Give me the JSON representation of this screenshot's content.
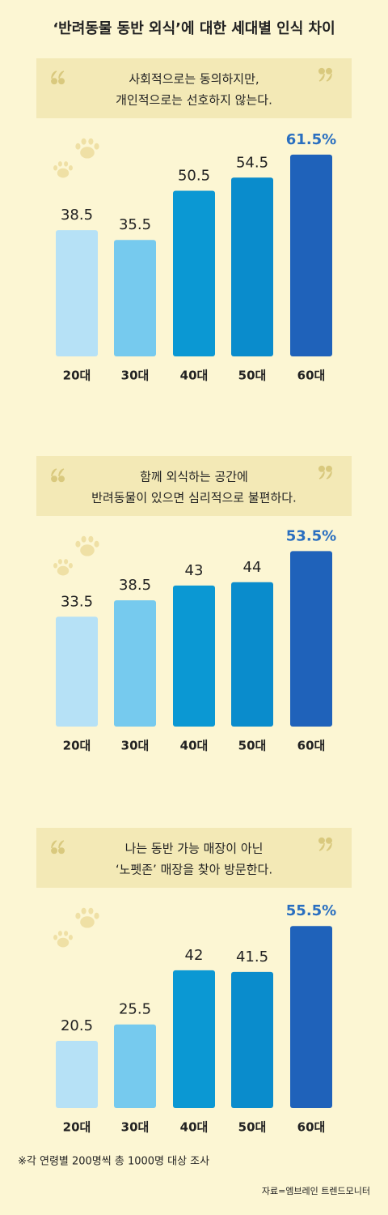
{
  "title": "‘반려동물 동반 외식’에 대한 세대별 인식 차이",
  "footnote": "※각 연령별 200명씩 총 1000명 대상 조사",
  "source": "자료=엠브레인 트렌드모니터",
  "chart_data": [
    {
      "type": "bar",
      "subtitle": [
        "사회적으로는 동의하지만,",
        "개인적으로는 선호하지 않는다."
      ],
      "categories": [
        "20대",
        "30대",
        "40대",
        "50대",
        "60대"
      ],
      "values": [
        38.5,
        35.5,
        50.5,
        54.5,
        61.5
      ],
      "value_labels": [
        "38.5",
        "35.5",
        "50.5",
        "54.5",
        "61.5%"
      ],
      "colors": [
        "#b6e1f6",
        "#76caee",
        "#0b98d3",
        "#0a8ccc",
        "#1f62ba"
      ]
    },
    {
      "type": "bar",
      "subtitle": [
        "함께 외식하는 공간에",
        "반려동물이 있으면 심리적으로 불편하다."
      ],
      "categories": [
        "20대",
        "30대",
        "40대",
        "50대",
        "60대"
      ],
      "values": [
        33.5,
        38.5,
        43,
        44,
        53.5
      ],
      "value_labels": [
        "33.5",
        "38.5",
        "43",
        "44",
        "53.5%"
      ],
      "colors": [
        "#b6e1f6",
        "#76caee",
        "#0b98d3",
        "#0a8ccc",
        "#1f62ba"
      ]
    },
    {
      "type": "bar",
      "subtitle": [
        "나는 동반 가능 매장이 아닌",
        "‘노펫존’ 매장을 찾아 방문한다."
      ],
      "categories": [
        "20대",
        "30대",
        "40대",
        "50대",
        "60대"
      ],
      "values": [
        20.5,
        25.5,
        42,
        41.5,
        55.5
      ],
      "value_labels": [
        "20.5",
        "25.5",
        "42",
        "41.5",
        "55.5%"
      ],
      "colors": [
        "#b6e1f6",
        "#76caee",
        "#0b98d3",
        "#0a8ccc",
        "#1f62ba"
      ]
    }
  ]
}
